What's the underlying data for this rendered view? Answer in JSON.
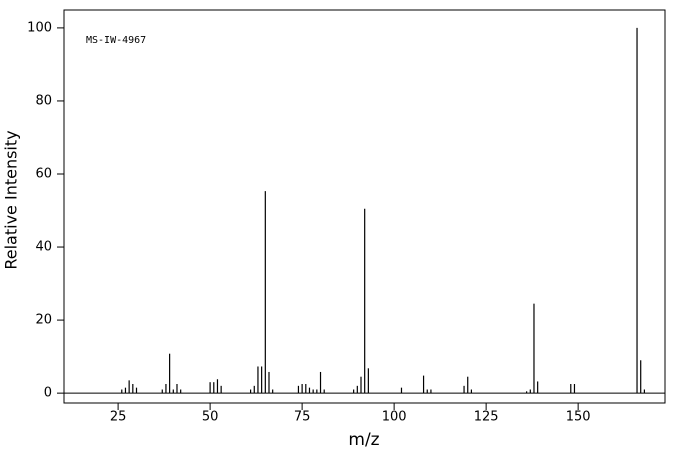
{
  "chart_data": {
    "type": "stem",
    "annotation": "MS-IW-4967",
    "x_label": "m/z",
    "y_label": "Relative Intensity",
    "color": "#000000",
    "x": [
      26,
      27,
      28,
      29,
      30,
      37,
      38,
      39,
      40,
      41,
      42,
      50,
      51,
      52,
      53,
      61,
      62,
      63,
      64,
      65,
      66,
      67,
      74,
      75,
      76,
      77,
      78,
      79,
      80,
      81,
      89,
      90,
      91,
      92,
      93,
      102,
      108,
      109,
      110,
      119,
      120,
      121,
      136,
      137,
      138,
      139,
      148,
      149,
      166,
      167,
      168
    ],
    "values": [
      1,
      1.5,
      3.5,
      2.5,
      1.5,
      1,
      2.5,
      10.8,
      1,
      2.5,
      1,
      3,
      3,
      3.8,
      2,
      1,
      2,
      7.3,
      7.3,
      55.3,
      5.8,
      1,
      2,
      2.5,
      2.5,
      1.5,
      1,
      1,
      5.8,
      1,
      1,
      2,
      4.5,
      50.5,
      6.8,
      1.5,
      4.8,
      1,
      1,
      2,
      4.5,
      1,
      0.5,
      1,
      24.5,
      3.2,
      2.5,
      2.5,
      100,
      9,
      1
    ],
    "xlim": [
      10.3,
      173.6
    ],
    "ylim": [
      -2.7,
      104.9
    ],
    "xticks": [
      25,
      50,
      75,
      100,
      125,
      150
    ],
    "yticks": [
      0,
      20,
      40,
      60,
      80,
      100
    ]
  }
}
